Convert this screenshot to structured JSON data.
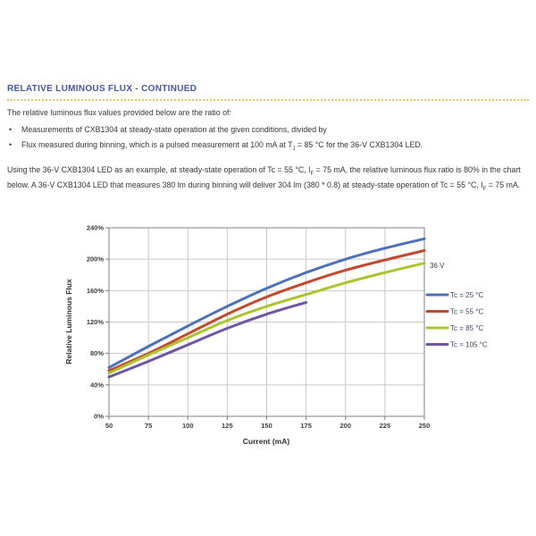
{
  "header": {
    "title": "RELATIVE LUMINOUS FLUX - CONTINUED",
    "title_color": "#4457a8",
    "rule_color": "#e8c75f"
  },
  "intro": {
    "lead": "The relative luminous flux values provided below are the ratio of:",
    "bullets": [
      {
        "segments": [
          {
            "t": "Measurements of CXB1304 at steady-state operation at the given conditions, divided by"
          }
        ]
      },
      {
        "segments": [
          {
            "t": "Flux measured during binning, which is a pulsed measurement at 100 mA at T"
          },
          {
            "sub": "J"
          },
          {
            "t": " = 85 °C for the 36-V CXB1304 LED."
          }
        ]
      }
    ],
    "example_segments": [
      {
        "t": "Using the 36-V CXB1304 LED as an example, at steady-state operation of Tc = 55 °C, I"
      },
      {
        "sub": "F"
      },
      {
        "t": " = 75 mA, the relative luminous flux ratio is 80% in the chart below. A 36-V CXB1304 LED that measures 380 lm during binning will deliver 304 lm (380 * 0.8) at steady-state operation of Tc = 55 °C, I"
      },
      {
        "sub": "F"
      },
      {
        "t": " = 75 mA."
      }
    ]
  },
  "chart_data": {
    "type": "line",
    "title": "",
    "xlabel": "Current (mA)",
    "ylabel": "Relative Luminous Flux",
    "xlim": [
      50,
      250
    ],
    "ylim": [
      0,
      240
    ],
    "xticks": [
      50,
      75,
      100,
      125,
      150,
      175,
      200,
      225,
      250
    ],
    "ytick_labels": [
      "0%",
      "40%",
      "80%",
      "120%",
      "160%",
      "200%",
      "240%"
    ],
    "grid": true,
    "legend_position": "right",
    "annotation": {
      "text": "36 V"
    },
    "x": [
      50,
      75,
      100,
      125,
      150,
      175,
      200,
      225,
      250
    ],
    "series": [
      {
        "name": "Tc = 25 °C",
        "color": "#4d71b9",
        "values": [
          62,
          89,
          115,
          140,
          163,
          183,
          200,
          214,
          226
        ]
      },
      {
        "name": "Tc = 55 °C",
        "color": "#c2482e",
        "values": [
          58,
          80,
          105,
          130,
          152,
          170,
          186,
          199,
          211
        ]
      },
      {
        "name": "Tc = 85 °C",
        "color": "#aec42f",
        "values": [
          55,
          78,
          100,
          122,
          140,
          155,
          170,
          183,
          195
        ]
      },
      {
        "name": "Tc = 105 °C",
        "color": "#6f55a2",
        "values": [
          50,
          70,
          91,
          112,
          130,
          145
        ]
      }
    ],
    "grid_color": "#c9c9c9",
    "frame_color": "#7f7f7f"
  }
}
